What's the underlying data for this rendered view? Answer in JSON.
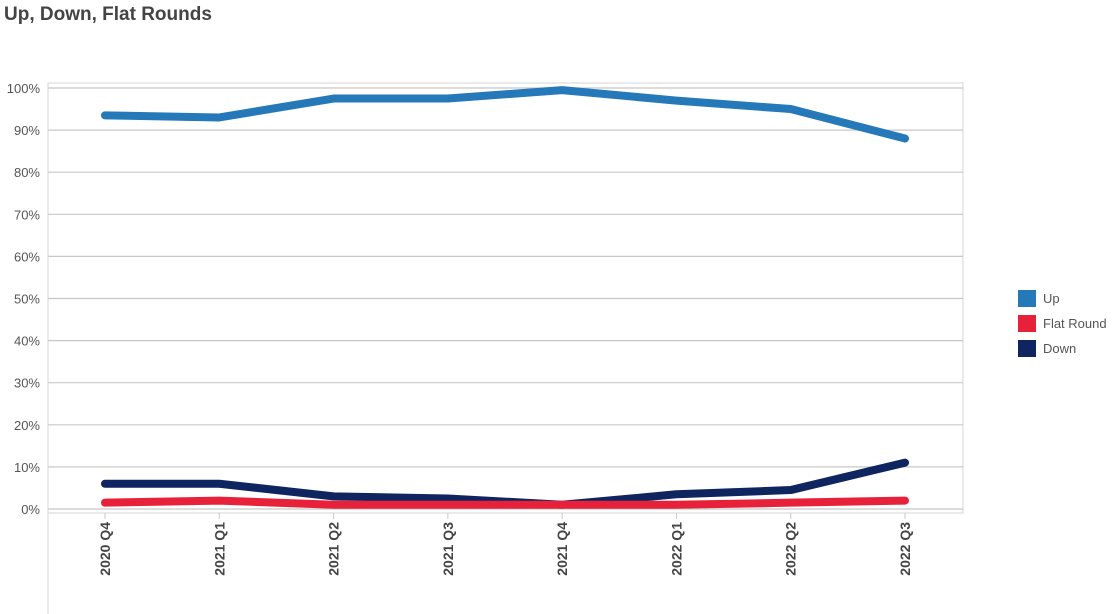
{
  "chart_data": {
    "type": "line",
    "title": "Up, Down, Flat Rounds",
    "xlabel": "",
    "ylabel": "",
    "categories": [
      "2020 Q4",
      "2021 Q1",
      "2021 Q2",
      "2021 Q3",
      "2021 Q4",
      "2022 Q1",
      "2022 Q2",
      "2022 Q3"
    ],
    "ylim": [
      0,
      100
    ],
    "yticks": [
      "0%",
      "10%",
      "20%",
      "30%",
      "40%",
      "50%",
      "60%",
      "70%",
      "80%",
      "90%",
      "100%"
    ],
    "grid": true,
    "legend_position": "right",
    "series": [
      {
        "name": "Up",
        "color": "#2579b8",
        "values": [
          93.5,
          93,
          97.5,
          97.5,
          99.5,
          97,
          95,
          88
        ]
      },
      {
        "name": "Flat Round",
        "color": "#e8213a",
        "values": [
          1.5,
          2,
          1,
          1,
          1,
          1,
          1.5,
          2
        ]
      },
      {
        "name": "Down",
        "color": "#0f2560",
        "values": [
          6,
          6,
          3,
          2.5,
          1,
          3.5,
          4.5,
          11
        ]
      }
    ]
  }
}
